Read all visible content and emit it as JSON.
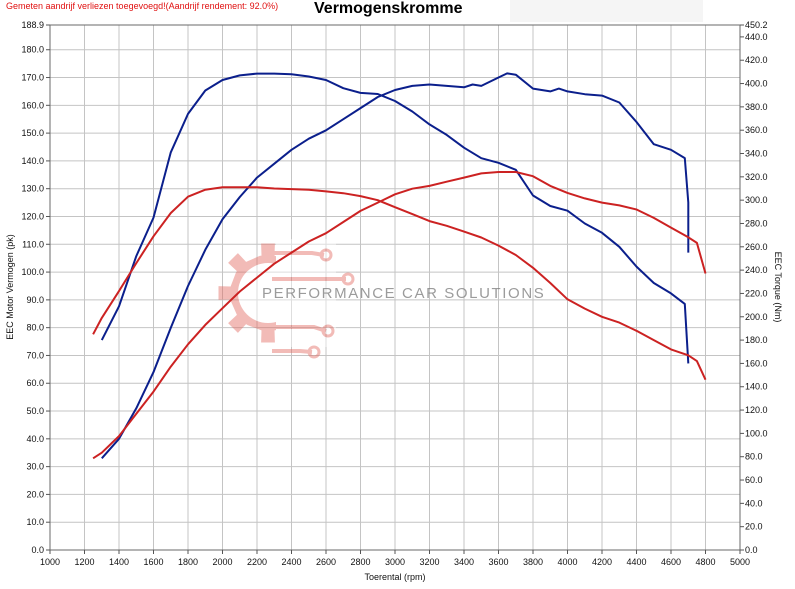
{
  "notice": "Gemeten aandrijf verliezen toegevoegd!(Aandrijf rendement: 92.0%)",
  "watermark": {
    "text": "PERFORMANCE CAR SOLUTIONS",
    "logo": "gear-circuit-logo"
  },
  "colors": {
    "blue": "#0b1f8c",
    "red": "#cc2222",
    "red_light": "#e27a74",
    "grid": "#c4c4c4",
    "notice": "#e01010"
  },
  "chart_data": {
    "type": "line",
    "title": "Vermogenskromme",
    "xlabel": "Toerental (rpm)",
    "ylabel_left": "EEC Motor Vermogen (pk)",
    "ylabel_right": "EEC Torque (Nm)",
    "xlim": [
      1000,
      5000
    ],
    "ylim_left": [
      0,
      188.9
    ],
    "ylim_right": [
      0,
      450.2
    ],
    "grid": true,
    "x_ticks": [
      "1000",
      "1200",
      "1400",
      "1600",
      "1800",
      "2000",
      "2200",
      "2400",
      "2600",
      "2800",
      "3000",
      "3200",
      "3400",
      "3600",
      "3800",
      "4000",
      "4200",
      "4400",
      "4600",
      "4800",
      "5000"
    ],
    "left_ticks": [
      "0.0",
      "10.0",
      "20.0",
      "30.0",
      "40.0",
      "50.0",
      "60.0",
      "70.0",
      "80.0",
      "90.0",
      "100.0",
      "110.0",
      "120.0",
      "130.0",
      "140.0",
      "150.0",
      "160.0",
      "170.0",
      "180.0",
      "188.9"
    ],
    "right_ticks": [
      "0.0",
      "20.0",
      "40.0",
      "60.0",
      "80.0",
      "100.0",
      "120.0",
      "140.0",
      "160.0",
      "180.0",
      "200.0",
      "220.0",
      "240.0",
      "260.0",
      "280.0",
      "300.0",
      "320.0",
      "340.0",
      "360.0",
      "380.0",
      "400.0",
      "420.0",
      "440.0",
      "450.2"
    ],
    "series": [
      {
        "axis": "left",
        "color": "#0b1f8c",
        "points": [
          [
            1300,
            33
          ],
          [
            1400,
            40
          ],
          [
            1500,
            51
          ],
          [
            1600,
            64
          ],
          [
            1700,
            80
          ],
          [
            1800,
            95
          ],
          [
            1900,
            108
          ],
          [
            2000,
            119
          ],
          [
            2100,
            127
          ],
          [
            2200,
            134
          ],
          [
            2300,
            139
          ],
          [
            2400,
            144
          ],
          [
            2500,
            148
          ],
          [
            2600,
            151
          ],
          [
            2700,
            155
          ],
          [
            2800,
            159
          ],
          [
            2900,
            163
          ],
          [
            3000,
            165.5
          ],
          [
            3100,
            167
          ],
          [
            3200,
            167.5
          ],
          [
            3300,
            167
          ],
          [
            3400,
            166.5
          ],
          [
            3450,
            167.5
          ],
          [
            3500,
            167
          ],
          [
            3600,
            170
          ],
          [
            3650,
            171.5
          ],
          [
            3700,
            171
          ],
          [
            3800,
            166
          ],
          [
            3900,
            165
          ],
          [
            3950,
            166
          ],
          [
            4000,
            165
          ],
          [
            4100,
            164
          ],
          [
            4200,
            163.5
          ],
          [
            4300,
            161
          ],
          [
            4400,
            154
          ],
          [
            4500,
            146
          ],
          [
            4600,
            144
          ],
          [
            4680,
            141
          ],
          [
            4700,
            125
          ],
          [
            4700,
            107
          ]
        ]
      },
      {
        "axis": "right",
        "color": "#0b1f8c",
        "points": [
          [
            1300,
            180
          ],
          [
            1400,
            209
          ],
          [
            1500,
            252
          ],
          [
            1600,
            285
          ],
          [
            1700,
            341
          ],
          [
            1800,
            374
          ],
          [
            1900,
            394
          ],
          [
            2000,
            403
          ],
          [
            2100,
            407
          ],
          [
            2200,
            408.5
          ],
          [
            2300,
            408.5
          ],
          [
            2400,
            408
          ],
          [
            2500,
            406
          ],
          [
            2600,
            403
          ],
          [
            2700,
            396
          ],
          [
            2800,
            392
          ],
          [
            2900,
            391
          ],
          [
            3000,
            385
          ],
          [
            3100,
            376
          ],
          [
            3200,
            365
          ],
          [
            3300,
            356
          ],
          [
            3400,
            345
          ],
          [
            3500,
            336
          ],
          [
            3600,
            332
          ],
          [
            3700,
            326
          ],
          [
            3800,
            304
          ],
          [
            3900,
            295
          ],
          [
            4000,
            291
          ],
          [
            4100,
            280
          ],
          [
            4200,
            272
          ],
          [
            4300,
            260
          ],
          [
            4400,
            243
          ],
          [
            4500,
            229
          ],
          [
            4600,
            220
          ],
          [
            4680,
            211
          ],
          [
            4700,
            160
          ]
        ]
      },
      {
        "axis": "left",
        "color": "#cc2222",
        "points": [
          [
            1250,
            33
          ],
          [
            1300,
            35
          ],
          [
            1400,
            41
          ],
          [
            1500,
            49
          ],
          [
            1600,
            57
          ],
          [
            1700,
            66
          ],
          [
            1800,
            74
          ],
          [
            1900,
            81
          ],
          [
            2000,
            87
          ],
          [
            2100,
            93
          ],
          [
            2200,
            98
          ],
          [
            2300,
            103
          ],
          [
            2400,
            107
          ],
          [
            2500,
            111
          ],
          [
            2600,
            114
          ],
          [
            2700,
            118
          ],
          [
            2800,
            122
          ],
          [
            2900,
            125
          ],
          [
            3000,
            128
          ],
          [
            3100,
            130
          ],
          [
            3200,
            131
          ],
          [
            3300,
            132.5
          ],
          [
            3400,
            134
          ],
          [
            3500,
            135.5
          ],
          [
            3600,
            136
          ],
          [
            3700,
            136
          ],
          [
            3800,
            134.5
          ],
          [
            3900,
            131
          ],
          [
            4000,
            128.5
          ],
          [
            4100,
            126.5
          ],
          [
            4200,
            125
          ],
          [
            4300,
            124
          ],
          [
            4400,
            122.5
          ],
          [
            4500,
            119.5
          ],
          [
            4600,
            116
          ],
          [
            4700,
            112.5
          ],
          [
            4750,
            110.5
          ],
          [
            4800,
            99.5
          ]
        ]
      },
      {
        "axis": "right",
        "color": "#cc2222",
        "points": [
          [
            1250,
            185
          ],
          [
            1300,
            199
          ],
          [
            1400,
            222
          ],
          [
            1500,
            246
          ],
          [
            1600,
            269
          ],
          [
            1700,
            289
          ],
          [
            1800,
            303
          ],
          [
            1900,
            309
          ],
          [
            2000,
            311
          ],
          [
            2100,
            311
          ],
          [
            2200,
            311
          ],
          [
            2300,
            310
          ],
          [
            2400,
            309.5
          ],
          [
            2500,
            309
          ],
          [
            2600,
            307.5
          ],
          [
            2700,
            306
          ],
          [
            2800,
            303.5
          ],
          [
            2900,
            300
          ],
          [
            3000,
            294
          ],
          [
            3100,
            288
          ],
          [
            3200,
            282
          ],
          [
            3300,
            278
          ],
          [
            3400,
            273
          ],
          [
            3500,
            268
          ],
          [
            3600,
            261
          ],
          [
            3700,
            253
          ],
          [
            3800,
            242
          ],
          [
            3900,
            229
          ],
          [
            4000,
            215
          ],
          [
            4100,
            207
          ],
          [
            4200,
            200
          ],
          [
            4300,
            195
          ],
          [
            4400,
            188
          ],
          [
            4500,
            180
          ],
          [
            4600,
            172
          ],
          [
            4700,
            167
          ],
          [
            4750,
            162
          ],
          [
            4800,
            146
          ]
        ]
      }
    ]
  }
}
